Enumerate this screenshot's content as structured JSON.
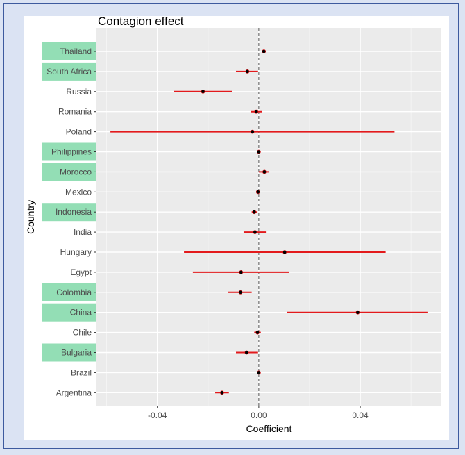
{
  "chart_data": {
    "type": "scatter",
    "title": "Contagion effect",
    "xlabel": "Coefficient",
    "ylabel": "Country",
    "xlim": [
      -0.064,
      0.072
    ],
    "x_ticks": [
      -0.04,
      0.0,
      0.04
    ],
    "x_tick_labels": [
      "-0.04",
      "0.00",
      "0.04"
    ],
    "reference_line": 0,
    "grid": true,
    "highlight_color": "#93deb5",
    "point_color": "#000000",
    "interval_color": "#e31a1c",
    "panel_color": "#ebebeb",
    "categories": [
      "Thailand",
      "South Africa",
      "Russia",
      "Romania",
      "Poland",
      "Philippines",
      "Morocco",
      "Mexico",
      "Indonesia",
      "India",
      "Hungary",
      "Egypt",
      "Colombia",
      "China",
      "Chile",
      "Bulgaria",
      "Brazil",
      "Argentina"
    ],
    "highlighted": [
      "Thailand",
      "South Africa",
      "Philippines",
      "Morocco",
      "Indonesia",
      "Colombia",
      "China",
      "Bulgaria"
    ],
    "points": [
      {
        "country": "Thailand",
        "estimate": 0.002,
        "low": null,
        "high": null
      },
      {
        "country": "South Africa",
        "estimate": -0.0045,
        "low": -0.009,
        "high": -0.0003
      },
      {
        "country": "Russia",
        "estimate": -0.022,
        "low": -0.0335,
        "high": -0.0105
      },
      {
        "country": "Romania",
        "estimate": -0.001,
        "low": -0.0032,
        "high": 0.0012
      },
      {
        "country": "Poland",
        "estimate": -0.0025,
        "low": -0.0585,
        "high": 0.0535
      },
      {
        "country": "Philippines",
        "estimate": 0.0,
        "low": null,
        "high": null
      },
      {
        "country": "Morocco",
        "estimate": 0.0022,
        "low": 0.0,
        "high": 0.004
      },
      {
        "country": "Mexico",
        "estimate": -0.0003,
        "low": null,
        "high": null
      },
      {
        "country": "Indonesia",
        "estimate": -0.0018,
        "low": -0.0028,
        "high": -0.0005
      },
      {
        "country": "India",
        "estimate": -0.0015,
        "low": -0.006,
        "high": 0.0028
      },
      {
        "country": "Hungary",
        "estimate": 0.0102,
        "low": -0.0295,
        "high": 0.05
      },
      {
        "country": "Egypt",
        "estimate": -0.007,
        "low": -0.026,
        "high": 0.012
      },
      {
        "country": "Colombia",
        "estimate": -0.0072,
        "low": -0.0122,
        "high": -0.0028
      },
      {
        "country": "China",
        "estimate": 0.039,
        "low": 0.0112,
        "high": 0.0665
      },
      {
        "country": "Chile",
        "estimate": -0.0005,
        "low": -0.0018,
        "high": 0.0008
      },
      {
        "country": "Bulgaria",
        "estimate": -0.0048,
        "low": -0.009,
        "high": -0.0003
      },
      {
        "country": "Brazil",
        "estimate": 0.0,
        "low": null,
        "high": null
      },
      {
        "country": "Argentina",
        "estimate": -0.0145,
        "low": -0.0172,
        "high": -0.0118
      }
    ]
  }
}
